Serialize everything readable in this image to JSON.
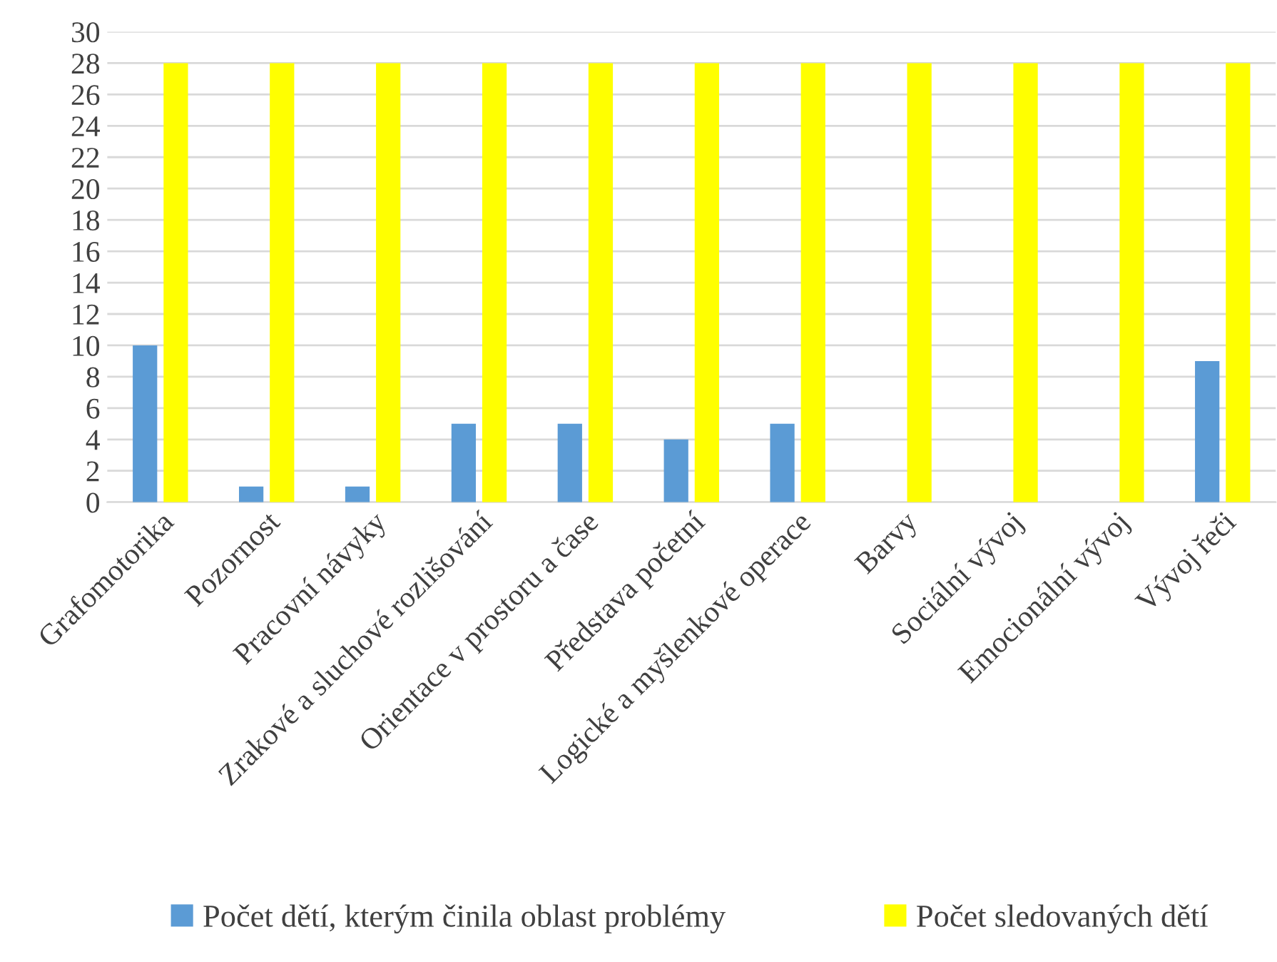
{
  "chart_data": {
    "type": "bar",
    "categories": [
      "Grafomotorika",
      "Pozornost",
      "Pracovní návyky",
      "Zrakové a sluchové rozlišování",
      "Orientace v prostoru a čase",
      "Představa početní",
      "Logické a myšlenkové operace",
      "Barvy",
      "Sociální vývoj",
      "Emocionální vývoj",
      "Vývoj řeči"
    ],
    "series": [
      {
        "name": "Počet dětí, kterým činila oblast problémy",
        "color": "#5b9bd5",
        "values": [
          10,
          1,
          1,
          5,
          5,
          4,
          5,
          0,
          0,
          0,
          9
        ]
      },
      {
        "name": "Počet sledovaných dětí",
        "color": "#ffff00",
        "values": [
          28,
          28,
          28,
          28,
          28,
          28,
          28,
          28,
          28,
          28,
          28
        ]
      }
    ],
    "ylim": [
      0,
      30
    ],
    "yticks": [
      0,
      2,
      4,
      6,
      8,
      10,
      12,
      14,
      16,
      18,
      20,
      22,
      24,
      26,
      28,
      30
    ],
    "grid": "y",
    "legend": "bottom"
  }
}
